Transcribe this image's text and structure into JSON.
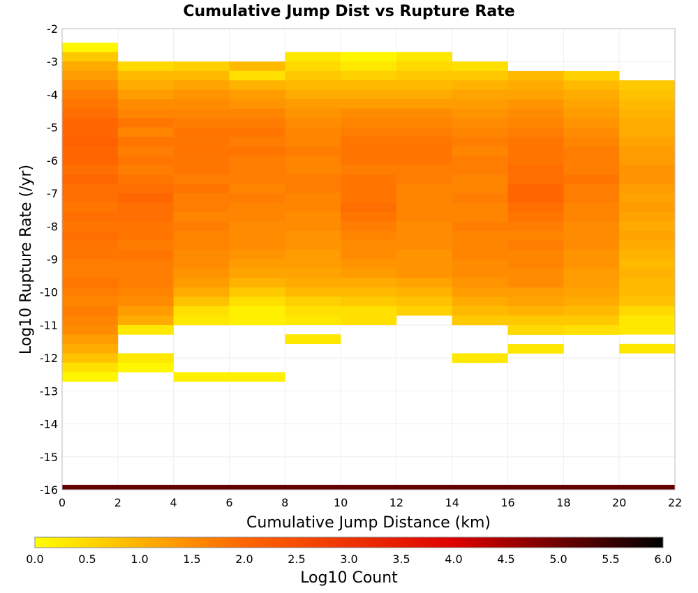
{
  "chart_data": {
    "type": "heatmap",
    "title": "Cumulative Jump Dist vs Rupture Rate",
    "xlabel": "Cumulative Jump Distance (km)",
    "ylabel": "Log10 Rupture Rate (/yr)",
    "xlim": [
      0,
      22
    ],
    "ylim": [
      -16,
      -2
    ],
    "x_ticks": [
      "0",
      "2",
      "4",
      "6",
      "8",
      "10",
      "12",
      "14",
      "16",
      "18",
      "20",
      "22"
    ],
    "y_ticks": [
      "-2",
      "-3",
      "-4",
      "-5",
      "-6",
      "-7",
      "-8",
      "-9",
      "-10",
      "-11",
      "-12",
      "-13",
      "-14",
      "-15",
      "-16"
    ],
    "grid": true,
    "x_bin_width": 2,
    "y_bin_height": 0.2857,
    "columns": [
      {
        "x0": 0,
        "y_top": -2.43,
        "bottom_row": {
          "y": -16,
          "log10_count": 5.1
        },
        "values": [
          0.1,
          0.7,
          1.1,
          1.3,
          1.5,
          1.7,
          1.8,
          1.9,
          2.0,
          2.0,
          2.1,
          2.0,
          2.0,
          1.9,
          2.0,
          1.9,
          1.9,
          1.8,
          1.9,
          1.8,
          1.9,
          1.8,
          1.8,
          1.7,
          1.7,
          1.8,
          1.7,
          1.6,
          1.7,
          1.6,
          1.5,
          1.3,
          1.1,
          0.8,
          0.4,
          0.1
        ]
      },
      {
        "x0": 2,
        "y_top": -3.0,
        "bottom_row": {
          "y": -16,
          "log10_count": 5.1
        },
        "values": [
          0.5,
          0.9,
          1.1,
          1.3,
          1.5,
          1.6,
          1.8,
          1.6,
          1.8,
          1.7,
          1.8,
          1.7,
          1.8,
          1.9,
          2.0,
          1.9,
          1.9,
          1.8,
          1.8,
          1.7,
          1.8,
          1.7,
          1.7,
          1.7,
          1.6,
          1.5,
          1.3,
          1.1,
          0.3,
          null,
          null,
          0.3,
          0.1
        ]
      },
      {
        "x0": 4,
        "y_top": -3.0,
        "bottom_row": {
          "y": -16,
          "log10_count": 5.1
        },
        "values": [
          0.6,
          0.9,
          1.2,
          1.4,
          1.5,
          1.6,
          1.7,
          1.8,
          1.8,
          1.8,
          1.8,
          1.8,
          1.7,
          1.8,
          1.7,
          1.7,
          1.6,
          1.7,
          1.6,
          1.6,
          1.5,
          1.5,
          1.4,
          1.3,
          1.1,
          0.8,
          0.4,
          0.3,
          null,
          null,
          null,
          null,
          null,
          0.2
        ]
      },
      {
        "x0": 6,
        "y_top": -3.0,
        "bottom_row": {
          "y": -16,
          "log10_count": 5.1
        },
        "values": [
          0.9,
          0.4,
          1.0,
          1.3,
          1.4,
          1.6,
          1.7,
          1.8,
          1.7,
          1.8,
          1.7,
          1.7,
          1.7,
          1.6,
          1.7,
          1.6,
          1.6,
          1.5,
          1.5,
          1.5,
          1.4,
          1.3,
          1.2,
          1.0,
          0.7,
          0.4,
          0.2,
          0.2,
          null,
          null,
          null,
          null,
          null,
          0.2
        ]
      },
      {
        "x0": 8,
        "y_top": -2.71,
        "bottom_row": {
          "y": -16,
          "log10_count": 5.1
        },
        "values": [
          0.3,
          0.5,
          0.7,
          0.9,
          1.1,
          1.3,
          1.4,
          1.5,
          1.6,
          1.6,
          1.7,
          1.6,
          1.6,
          1.7,
          1.7,
          1.6,
          1.6,
          1.5,
          1.5,
          1.4,
          1.4,
          1.3,
          1.3,
          1.2,
          1.1,
          0.9,
          0.6,
          0.4,
          0.3,
          null,
          0.3
        ]
      },
      {
        "x0": 10,
        "y_top": -2.71,
        "bottom_row": {
          "y": -16,
          "log10_count": 5.1
        },
        "values": [
          0.1,
          0.3,
          0.6,
          0.9,
          1.1,
          1.3,
          1.5,
          1.6,
          1.7,
          1.8,
          1.8,
          1.8,
          1.7,
          1.8,
          1.8,
          1.8,
          1.9,
          1.8,
          1.7,
          1.6,
          1.5,
          1.5,
          1.4,
          1.3,
          1.1,
          0.9,
          0.7,
          0.4,
          0.4
        ]
      },
      {
        "x0": 12,
        "y_top": -2.71,
        "bottom_row": {
          "y": -16,
          "log10_count": 5.1
        },
        "values": [
          0.3,
          0.5,
          0.7,
          0.9,
          1.1,
          1.3,
          1.5,
          1.6,
          1.7,
          1.8,
          1.8,
          1.8,
          1.7,
          1.7,
          1.6,
          1.6,
          1.6,
          1.6,
          1.5,
          1.5,
          1.5,
          1.4,
          1.4,
          1.4,
          1.2,
          1.0,
          0.8,
          0.6
        ]
      },
      {
        "x0": 14,
        "y_top": -3.0,
        "bottom_row": {
          "y": -16,
          "log10_count": 5.1
        },
        "values": [
          0.4,
          0.7,
          1.0,
          1.2,
          1.3,
          1.4,
          1.5,
          1.6,
          1.7,
          1.6,
          1.7,
          1.7,
          1.6,
          1.6,
          1.7,
          1.6,
          1.6,
          1.7,
          1.6,
          1.6,
          1.6,
          1.5,
          1.5,
          1.4,
          1.3,
          1.1,
          0.9,
          0.7,
          null,
          null,
          null,
          0.3
        ]
      },
      {
        "x0": 16,
        "y_top": -3.29,
        "bottom_row": {
          "y": -16,
          "log10_count": 5.1
        },
        "values": [
          0.9,
          1.1,
          1.2,
          1.4,
          1.5,
          1.6,
          1.7,
          1.8,
          1.8,
          1.8,
          1.9,
          1.9,
          2.0,
          2.0,
          1.9,
          1.8,
          1.7,
          1.6,
          1.7,
          1.6,
          1.6,
          1.5,
          1.5,
          1.3,
          1.2,
          1.0,
          0.7,
          0.5,
          null,
          0.3
        ]
      },
      {
        "x0": 18,
        "y_top": -3.29,
        "bottom_row": {
          "y": -16,
          "log10_count": 5.1
        },
        "values": [
          0.6,
          0.9,
          1.1,
          1.2,
          1.3,
          1.4,
          1.5,
          1.6,
          1.7,
          1.7,
          1.7,
          1.8,
          1.7,
          1.7,
          1.6,
          1.6,
          1.5,
          1.5,
          1.5,
          1.4,
          1.4,
          1.3,
          1.3,
          1.2,
          1.1,
          0.9,
          0.7,
          0.4
        ]
      },
      {
        "x0": 20,
        "y_top": -3.57,
        "bottom_row": {
          "y": -16,
          "log10_count": 5.1
        },
        "values": [
          0.7,
          0.8,
          0.9,
          1.0,
          1.1,
          1.1,
          1.2,
          1.3,
          1.3,
          1.4,
          1.4,
          1.3,
          1.2,
          1.3,
          1.2,
          1.1,
          1.2,
          1.1,
          1.0,
          0.9,
          1.0,
          0.9,
          0.9,
          0.8,
          0.5,
          0.3,
          0.3,
          null,
          0.3
        ]
      }
    ],
    "colorbar": {
      "label": "Log10 Count",
      "range": [
        0.0,
        6.0
      ],
      "ticks": [
        "0.0",
        "0.5",
        "1.0",
        "1.5",
        "2.0",
        "2.5",
        "3.0",
        "3.5",
        "4.0",
        "4.5",
        "5.0",
        "5.5",
        "6.0"
      ],
      "colors": [
        "#ffff00",
        "#ff6600",
        "#dd0000",
        "#000000"
      ]
    }
  }
}
